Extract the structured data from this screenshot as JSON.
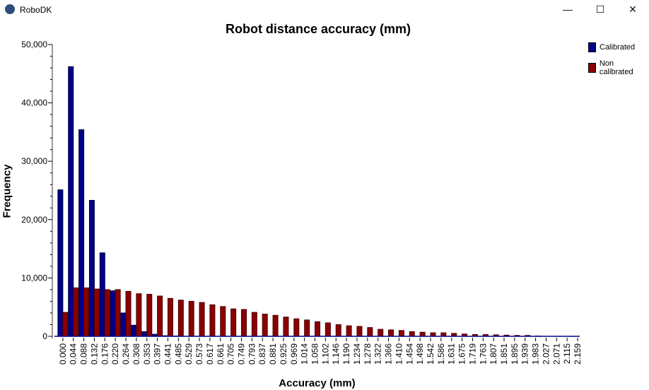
{
  "window": {
    "title": "RoboDK",
    "minimize": "—",
    "maximize": "☐",
    "close": "✕"
  },
  "chart_data": {
    "type": "bar",
    "title": "Robot distance accuracy (mm)",
    "xlabel": "Accuracy (mm)",
    "ylabel": "Frequency",
    "ylim": [
      0,
      50000
    ],
    "yticks": [
      "0",
      "10,000",
      "20,000",
      "30,000",
      "40,000",
      "50,000"
    ],
    "legend_position": "right",
    "categories": [
      "0.000",
      "0.044",
      "0.088",
      "0.132",
      "0.176",
      "0.220",
      "0.264",
      "0.308",
      "0.353",
      "0.397",
      "0.441",
      "0.485",
      "0.529",
      "0.573",
      "0.617",
      "0.661",
      "0.705",
      "0.749",
      "0.793",
      "0.837",
      "0.881",
      "0.925",
      "0.969",
      "1.014",
      "1.058",
      "1.102",
      "1.146",
      "1.190",
      "1.234",
      "1.278",
      "1.322",
      "1.366",
      "1.410",
      "1.454",
      "1.498",
      "1.542",
      "1.586",
      "1.631",
      "1.675",
      "1.719",
      "1.763",
      "1.807",
      "1.851",
      "1.895",
      "1.939",
      "1.983",
      "2.027",
      "2.071",
      "2.115",
      "2.159"
    ],
    "series": [
      {
        "name": "Calibrated",
        "color": "#00008b",
        "values": [
          25100,
          46200,
          35400,
          23300,
          14300,
          7800,
          4000,
          1900,
          800,
          350,
          100,
          50,
          30,
          20,
          10,
          0,
          0,
          0,
          0,
          0,
          0,
          0,
          0,
          0,
          0,
          0,
          0,
          0,
          0,
          0,
          0,
          0,
          0,
          0,
          0,
          0,
          0,
          0,
          0,
          0,
          0,
          0,
          0,
          0,
          0,
          0,
          0,
          0,
          0,
          0
        ]
      },
      {
        "name": "Non calibrated",
        "color": "#8b0000",
        "values": [
          4100,
          8300,
          8300,
          8100,
          8000,
          8000,
          7700,
          7300,
          7200,
          6900,
          6500,
          6200,
          6000,
          5800,
          5400,
          5100,
          4700,
          4600,
          4100,
          3800,
          3600,
          3300,
          3000,
          2800,
          2500,
          2300,
          2000,
          1800,
          1700,
          1500,
          1200,
          1100,
          1000,
          800,
          700,
          600,
          600,
          500,
          400,
          300,
          300,
          250,
          200,
          150,
          150,
          50,
          20,
          10,
          5,
          5
        ]
      }
    ]
  }
}
